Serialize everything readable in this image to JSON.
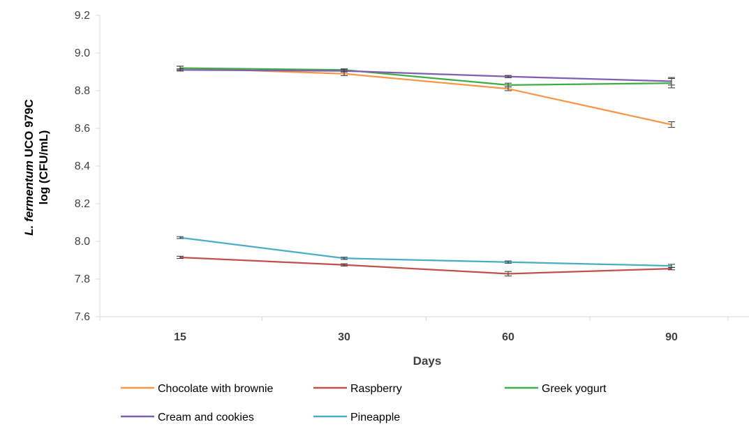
{
  "chart_data": {
    "type": "line",
    "x": [
      "15",
      "30",
      "60",
      "90"
    ],
    "xlabel": "Days",
    "ylabel_italic": "L. fermentum",
    "ylabel_rest": " UCO 979C",
    "ylabel_line2": "log (CFU/mL)",
    "ylim": [
      7.6,
      9.2
    ],
    "yticks": [
      7.6,
      7.8,
      8.0,
      8.2,
      8.4,
      8.6,
      8.8,
      9.0,
      9.2
    ],
    "grid": false,
    "legend_position": "bottom",
    "series": [
      {
        "name": "Chocolate with brownie",
        "color": "#f79646",
        "values": [
          8.92,
          8.89,
          8.81,
          8.62
        ],
        "errors": [
          0.01,
          0.01,
          0.01,
          0.015
        ]
      },
      {
        "name": "Raspberry",
        "color": "#c0504d",
        "values": [
          7.915,
          7.875,
          7.828,
          7.855
        ],
        "errors": [
          0.006,
          0.006,
          0.012,
          0.006
        ]
      },
      {
        "name": "Greek yogurt",
        "color": "#3fad46",
        "values": [
          8.92,
          8.91,
          8.83,
          8.84
        ],
        "errors": [
          0.01,
          0.006,
          0.01,
          0.025
        ]
      },
      {
        "name": "Cream and cookies",
        "color": "#7e5fb0",
        "values": [
          8.91,
          8.905,
          8.875,
          8.85
        ],
        "errors": [
          0.006,
          0.006,
          0.006,
          0.02
        ]
      },
      {
        "name": "Pineapple",
        "color": "#4bacc6",
        "values": [
          8.02,
          7.91,
          7.89,
          7.87
        ],
        "errors": [
          0.005,
          0.006,
          0.006,
          0.008
        ]
      }
    ]
  }
}
